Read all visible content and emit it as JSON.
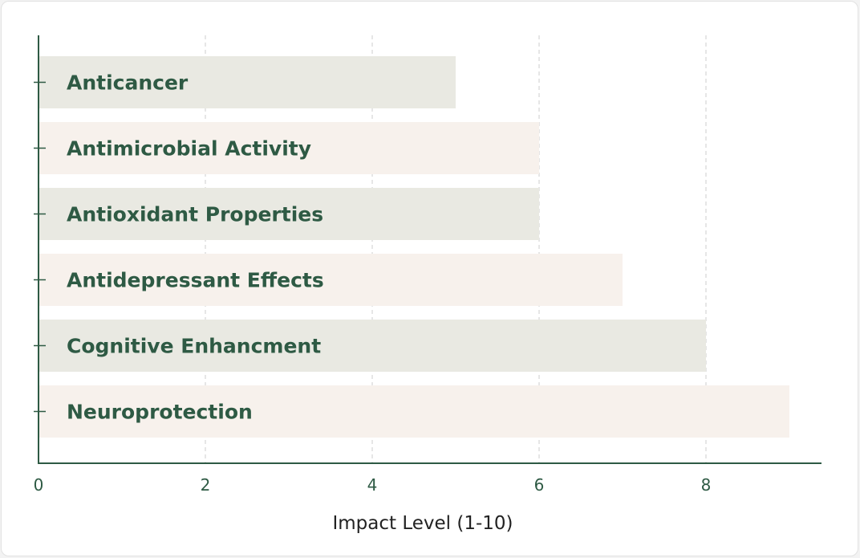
{
  "chart_data": {
    "type": "bar",
    "orientation": "horizontal",
    "title": "",
    "xlabel": "Impact Level (1-10)",
    "ylabel": "",
    "categories": [
      "Anticancer",
      "Antimicrobial Activity",
      "Antioxidant Properties",
      "Antidepressant Effects",
      "Cognitive Enhancment",
      "Neuroprotection"
    ],
    "values": [
      5,
      6,
      6,
      7,
      8,
      9
    ],
    "xlim": [
      0,
      9.4
    ],
    "xticks": [
      0,
      2,
      4,
      6,
      8
    ],
    "xtick_labels": [
      "0",
      "2",
      "4",
      "6",
      "8"
    ],
    "grid": "vertical dashed",
    "legend": "none",
    "colors": {
      "bar_alternate_1": "#e9e9e2",
      "bar_alternate_2": "#f7f1ec",
      "label": "#2e5a44",
      "axis": "#2e5a44",
      "tick_text": "#2e5a44",
      "axis_title": "#222222",
      "grid": "#d6d6d6"
    }
  }
}
